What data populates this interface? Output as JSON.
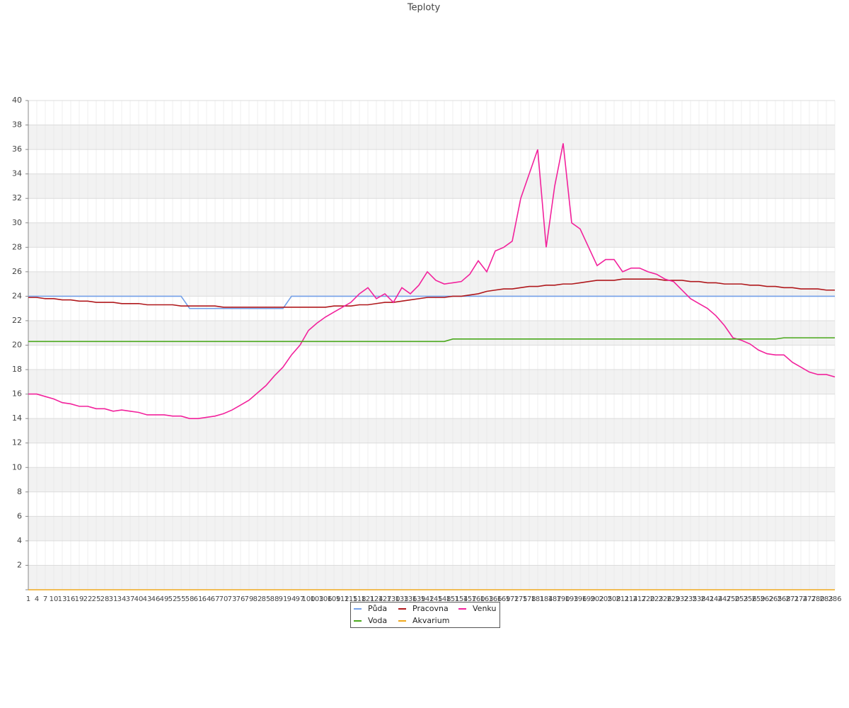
{
  "chart_data": {
    "type": "line",
    "title": "Teploty",
    "categories": [
      1,
      4,
      7,
      10,
      13,
      16,
      19,
      22,
      25,
      28,
      31,
      34,
      37,
      40,
      43,
      46,
      49,
      52,
      55,
      58,
      61,
      64,
      67,
      70,
      73,
      76,
      79,
      82,
      85,
      88,
      91,
      94,
      97,
      100,
      103,
      106,
      109,
      112,
      115,
      118,
      121,
      124,
      127,
      130,
      133,
      136,
      139,
      142,
      145,
      148,
      151,
      154,
      157,
      160,
      163,
      166,
      169,
      172,
      175,
      178,
      181,
      184,
      187,
      190,
      193,
      196,
      199,
      202,
      205,
      208,
      211,
      214,
      217,
      220,
      223,
      226,
      229,
      232,
      235,
      238,
      241,
      244,
      247,
      250,
      253,
      256,
      259,
      262,
      265,
      268,
      271,
      274,
      277,
      280,
      283,
      286
    ],
    "series": [
      {
        "name": "Půda",
        "color": "#74a0e8",
        "values": [
          24,
          24,
          24,
          24,
          24,
          24,
          24,
          24,
          24,
          24,
          24,
          24,
          24,
          24,
          24,
          24,
          24,
          24,
          24,
          23,
          23,
          23,
          23,
          23,
          23,
          23,
          23,
          23,
          23,
          23,
          23,
          24,
          24,
          24,
          24,
          24,
          24,
          24,
          24,
          24,
          24,
          24,
          24,
          24,
          24,
          24,
          24,
          24,
          24,
          24,
          24,
          24,
          24,
          24,
          24,
          24,
          24,
          24,
          24,
          24,
          24,
          24,
          24,
          24,
          24,
          24,
          24,
          24,
          24,
          24,
          24,
          24,
          24,
          24,
          24,
          24,
          24,
          24,
          24,
          24,
          24,
          24,
          24,
          24,
          24,
          24,
          24,
          24,
          24,
          24,
          24,
          24,
          24,
          24,
          24,
          24
        ]
      },
      {
        "name": "Pracovna",
        "color": "#b0181c",
        "values": [
          23.9,
          23.9,
          23.8,
          23.8,
          23.7,
          23.7,
          23.6,
          23.6,
          23.5,
          23.5,
          23.5,
          23.4,
          23.4,
          23.4,
          23.3,
          23.3,
          23.3,
          23.3,
          23.2,
          23.2,
          23.2,
          23.2,
          23.2,
          23.1,
          23.1,
          23.1,
          23.1,
          23.1,
          23.1,
          23.1,
          23.1,
          23.1,
          23.1,
          23.1,
          23.1,
          23.1,
          23.2,
          23.2,
          23.2,
          23.3,
          23.3,
          23.4,
          23.5,
          23.5,
          23.6,
          23.7,
          23.8,
          23.9,
          23.9,
          23.9,
          24.0,
          24.0,
          24.1,
          24.2,
          24.4,
          24.5,
          24.6,
          24.6,
          24.7,
          24.8,
          24.8,
          24.9,
          24.9,
          25.0,
          25.0,
          25.1,
          25.2,
          25.3,
          25.3,
          25.3,
          25.4,
          25.4,
          25.4,
          25.4,
          25.4,
          25.3,
          25.3,
          25.3,
          25.2,
          25.2,
          25.1,
          25.1,
          25.0,
          25.0,
          25.0,
          24.9,
          24.9,
          24.8,
          24.8,
          24.7,
          24.7,
          24.6,
          24.6,
          24.6,
          24.5,
          24.5
        ]
      },
      {
        "name": "Venku",
        "color": "#f2229c",
        "values": [
          16.0,
          16.0,
          15.8,
          15.6,
          15.3,
          15.2,
          15.0,
          15.0,
          14.8,
          14.8,
          14.6,
          14.7,
          14.6,
          14.5,
          14.3,
          14.3,
          14.3,
          14.2,
          14.2,
          14.0,
          14.0,
          14.1,
          14.2,
          14.4,
          14.7,
          15.1,
          15.5,
          16.1,
          16.7,
          17.5,
          18.2,
          19.2,
          20.0,
          21.2,
          21.8,
          22.3,
          22.7,
          23.1,
          23.5,
          24.2,
          24.7,
          23.8,
          24.2,
          23.5,
          24.7,
          24.2,
          24.9,
          26.0,
          25.3,
          25.0,
          25.1,
          25.2,
          25.8,
          26.9,
          26.0,
          27.7,
          28.0,
          28.5,
          32.0,
          34.0,
          36.0,
          28.0,
          33.0,
          36.5,
          30.0,
          29.5,
          28.0,
          26.5,
          27.0,
          27.0,
          26.0,
          26.3,
          26.3,
          26.0,
          25.8,
          25.4,
          25.2,
          24.5,
          23.8,
          23.4,
          23.0,
          22.4,
          21.6,
          20.6,
          20.4,
          20.1,
          19.6,
          19.3,
          19.2,
          19.2,
          18.6,
          18.2,
          17.8,
          17.6,
          17.6,
          17.4
        ]
      },
      {
        "name": "Voda",
        "color": "#4aa81c",
        "values": [
          20.3,
          20.3,
          20.3,
          20.3,
          20.3,
          20.3,
          20.3,
          20.3,
          20.3,
          20.3,
          20.3,
          20.3,
          20.3,
          20.3,
          20.3,
          20.3,
          20.3,
          20.3,
          20.3,
          20.3,
          20.3,
          20.3,
          20.3,
          20.3,
          20.3,
          20.3,
          20.3,
          20.3,
          20.3,
          20.3,
          20.3,
          20.3,
          20.3,
          20.3,
          20.3,
          20.3,
          20.3,
          20.3,
          20.3,
          20.3,
          20.3,
          20.3,
          20.3,
          20.3,
          20.3,
          20.3,
          20.3,
          20.3,
          20.3,
          20.3,
          20.5,
          20.5,
          20.5,
          20.5,
          20.5,
          20.5,
          20.5,
          20.5,
          20.5,
          20.5,
          20.5,
          20.5,
          20.5,
          20.5,
          20.5,
          20.5,
          20.5,
          20.5,
          20.5,
          20.5,
          20.5,
          20.5,
          20.5,
          20.5,
          20.5,
          20.5,
          20.5,
          20.5,
          20.5,
          20.5,
          20.5,
          20.5,
          20.5,
          20.5,
          20.5,
          20.5,
          20.5,
          20.5,
          20.5,
          20.6,
          20.6,
          20.6,
          20.6,
          20.6,
          20.6,
          20.6
        ]
      },
      {
        "name": "Akvarium",
        "color": "#f0a81c",
        "values": [
          0,
          0,
          0,
          0,
          0,
          0,
          0,
          0,
          0,
          0,
          0,
          0,
          0,
          0,
          0,
          0,
          0,
          0,
          0,
          0,
          0,
          0,
          0,
          0,
          0,
          0,
          0,
          0,
          0,
          0,
          0,
          0,
          0,
          0,
          0,
          0,
          0,
          0,
          0,
          0,
          0,
          0,
          0,
          0,
          0,
          0,
          0,
          0,
          0,
          0,
          0,
          0,
          0,
          0,
          0,
          0,
          0,
          0,
          0,
          0,
          0,
          0,
          0,
          0,
          0,
          0,
          0,
          0,
          0,
          0,
          0,
          0,
          0,
          0,
          0,
          0,
          0,
          0,
          0,
          0,
          0,
          0,
          0,
          0,
          0,
          0,
          0,
          0,
          0,
          0,
          0,
          0,
          0,
          0,
          0,
          0
        ]
      }
    ],
    "ylim": [
      0,
      40
    ],
    "yticks": [
      2,
      4,
      6,
      8,
      10,
      12,
      14,
      16,
      18,
      20,
      22,
      24,
      26,
      28,
      30,
      32,
      34,
      36,
      38,
      40
    ],
    "grid": true,
    "legend": "bottom"
  }
}
